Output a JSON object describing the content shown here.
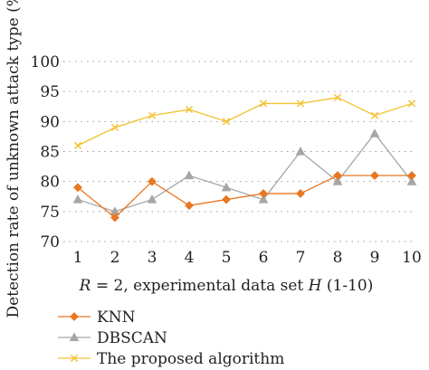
{
  "chart_data": {
    "type": "line",
    "title": "",
    "xlabel_parts": [
      {
        "text": "R",
        "italic": true
      },
      {
        "text": " = 2, experimental data set ",
        "italic": false
      },
      {
        "text": "H",
        "italic": true
      },
      {
        "text": " (1-10)",
        "italic": false
      }
    ],
    "ylabel": "Detection rate of unknown attack type (%)",
    "x": [
      1,
      2,
      3,
      4,
      5,
      6,
      7,
      8,
      9,
      10
    ],
    "x_tick_labels": [
      "1",
      "2",
      "3",
      "4",
      "5",
      "6",
      "7",
      "8",
      "9",
      "10"
    ],
    "y_ticks": [
      70,
      75,
      80,
      85,
      90,
      95,
      100
    ],
    "y_tick_labels": [
      "70",
      "75",
      "80",
      "85",
      "90",
      "95",
      "100"
    ],
    "xlim": [
      1,
      10
    ],
    "ylim": [
      70,
      100
    ],
    "grid": true,
    "legend_position": "bottom",
    "series": [
      {
        "name": "KNN",
        "color": "#e87722",
        "marker": "diamond",
        "values": [
          79,
          74,
          80,
          76,
          77,
          78,
          78,
          81,
          81,
          81
        ]
      },
      {
        "name": "DBSCAN",
        "color": "#a6a6a6",
        "marker": "triangle",
        "values": [
          77,
          75,
          77,
          81,
          79,
          77,
          85,
          80,
          88,
          80
        ]
      },
      {
        "name": "The proposed algorithm",
        "color": "#f2c12e",
        "marker": "x",
        "values": [
          86,
          89,
          91,
          92,
          90,
          93,
          93,
          94,
          91,
          93
        ]
      }
    ]
  }
}
